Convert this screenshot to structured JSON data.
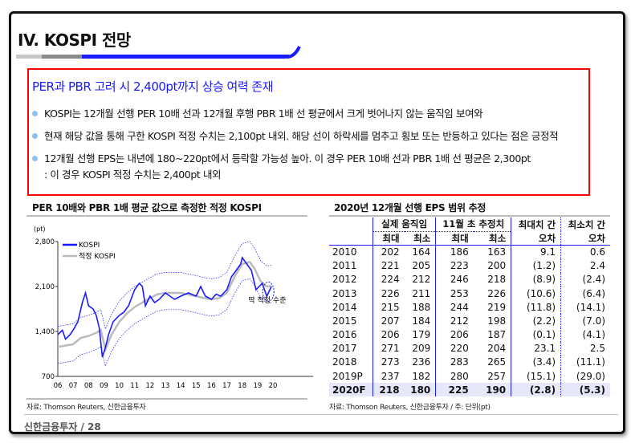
{
  "page": {
    "title": "IV. KOSPI 전망"
  },
  "summary": {
    "headline": "PER과 PBR 고려 시 2,400pt까지 상승 여력 존재",
    "bullets": [
      "KOSPI는 12개월 선행 PER 10배 선과 12개월 후행 PBR 1배 선 평균에서 크게 벗어나지 않는 움직임 보여와",
      "현재 해당 값을 통해 구한 KOSPI 적정 수치는 2,100pt 내외. 해당 선이 하락세를 멈추고 횡보 또는 반등하고 있다는 점은 긍정적",
      "12개월 선행 EPS는 내년에 180~220pt에서 등락할 가능성 높아. 이 경우 PER 10배 선과 PBR 1배 선 평균은 2,300pt"
    ],
    "bullet_cont": ": 이 경우 KOSPI 적정 수치는 2,400pt 내외"
  },
  "chart_data": {
    "type": "line",
    "title": "PER 10배와 PBR 1배 평균 값으로 측정한 적정 KOSPI",
    "ylabel": "(pt)",
    "ylim": [
      700,
      2800
    ],
    "yticks": [
      "2,800",
      "2,100",
      "1,400",
      "700"
    ],
    "ytick_values": [
      2800,
      2100,
      1400,
      700
    ],
    "xlim": [
      2006,
      2020.8
    ],
    "xticks": [
      "06",
      "07",
      "08",
      "09",
      "10",
      "11",
      "12",
      "13",
      "14",
      "15",
      "16",
      "17",
      "18",
      "19",
      "20"
    ],
    "annotation": "딱 적정 수준",
    "legend_placement": "top-left",
    "series": [
      {
        "name": "KOSPI",
        "color": "#1a1aff",
        "x": [
          2006,
          2006.3,
          2006.5,
          2006.8,
          2007,
          2007.3,
          2007.6,
          2007.8,
          2008,
          2008.3,
          2008.5,
          2008.7,
          2008.9,
          2009.1,
          2009.3,
          2009.6,
          2010,
          2010.3,
          2010.6,
          2011,
          2011.3,
          2011.5,
          2011.7,
          2012,
          2012.3,
          2012.6,
          2013,
          2013.3,
          2013.6,
          2014,
          2014.5,
          2015,
          2015.3,
          2015.6,
          2016,
          2016.3,
          2016.6,
          2017,
          2017.3,
          2017.6,
          2017.9,
          2018,
          2018.3,
          2018.6,
          2018.9,
          2019.1,
          2019.3,
          2019.6,
          2019.9
        ],
        "values": [
          1350,
          1420,
          1280,
          1350,
          1420,
          1550,
          1850,
          2000,
          1800,
          1750,
          1650,
          1450,
          1000,
          1150,
          1350,
          1550,
          1650,
          1700,
          1800,
          2050,
          2150,
          2100,
          1800,
          1950,
          1850,
          1900,
          2000,
          1950,
          1900,
          1950,
          2000,
          1950,
          2100,
          1950,
          1900,
          1980,
          1950,
          2050,
          2250,
          2350,
          2450,
          2550,
          2450,
          2350,
          2050,
          2100,
          2150,
          1950,
          2100
        ]
      },
      {
        "name": "적정 KOSPI",
        "color": "#bbbbbb",
        "x": [
          2006,
          2006.5,
          2007,
          2007.5,
          2008,
          2008.5,
          2008.8,
          2009.1,
          2009.5,
          2010,
          2010.5,
          2011,
          2011.5,
          2012,
          2012.5,
          2013,
          2014,
          2015,
          2015.5,
          2016,
          2016.5,
          2017,
          2017.5,
          2018,
          2018.5,
          2018.8,
          2019.2,
          2019.6,
          2019.9
        ],
        "values": [
          1160,
          1180,
          1200,
          1300,
          1330,
          1380,
          1420,
          1120,
          1350,
          1550,
          1680,
          1780,
          1850,
          1920,
          1980,
          2000,
          2000,
          1950,
          1920,
          1900,
          1920,
          2000,
          2250,
          2450,
          2480,
          2380,
          2180,
          2100,
          2110
        ]
      }
    ]
  },
  "table": {
    "title": "2020년 12개월 선행 EPS 범위 추정",
    "group_headers": [
      "실제 움직임",
      "11월 초 추정치",
      "최대치 간",
      "최소치 간"
    ],
    "sub_headers": [
      "최대",
      "최소",
      "최대",
      "최소",
      "오차",
      "오차"
    ],
    "rows": [
      [
        "2010",
        "202",
        "164",
        "186",
        "163",
        "9.1",
        "0.6"
      ],
      [
        "2011",
        "221",
        "205",
        "223",
        "200",
        "(1.2)",
        "2.4"
      ],
      [
        "2012",
        "224",
        "212",
        "246",
        "218",
        "(8.9)",
        "(2.4)"
      ],
      [
        "2013",
        "226",
        "211",
        "253",
        "226",
        "(10.6)",
        "(6.4)"
      ],
      [
        "2014",
        "215",
        "188",
        "244",
        "219",
        "(11.8)",
        "(14.1)"
      ],
      [
        "2015",
        "207",
        "184",
        "212",
        "198",
        "(2.2)",
        "(7.0)"
      ],
      [
        "2016",
        "206",
        "179",
        "206",
        "187",
        "(0.1)",
        "(4.1)"
      ],
      [
        "2017",
        "271",
        "209",
        "220",
        "204",
        "23.1",
        "2.5"
      ],
      [
        "2018",
        "273",
        "236",
        "283",
        "265",
        "(3.4)",
        "(11.1)"
      ],
      [
        "2019P",
        "237",
        "182",
        "280",
        "257",
        "(15.1)",
        "(29.0)"
      ],
      [
        "2020F",
        "218",
        "180",
        "225",
        "190",
        "(2.8)",
        "(5.3)"
      ]
    ]
  },
  "sources": {
    "chart": "자료: Thomson Reuters, 신한금융투자",
    "table": "자료: Thomson Reuters, 신한금융투자 / 주: 단위(pt)"
  },
  "footer": {
    "brand": "신한금융투자",
    "page": "/ 28"
  }
}
